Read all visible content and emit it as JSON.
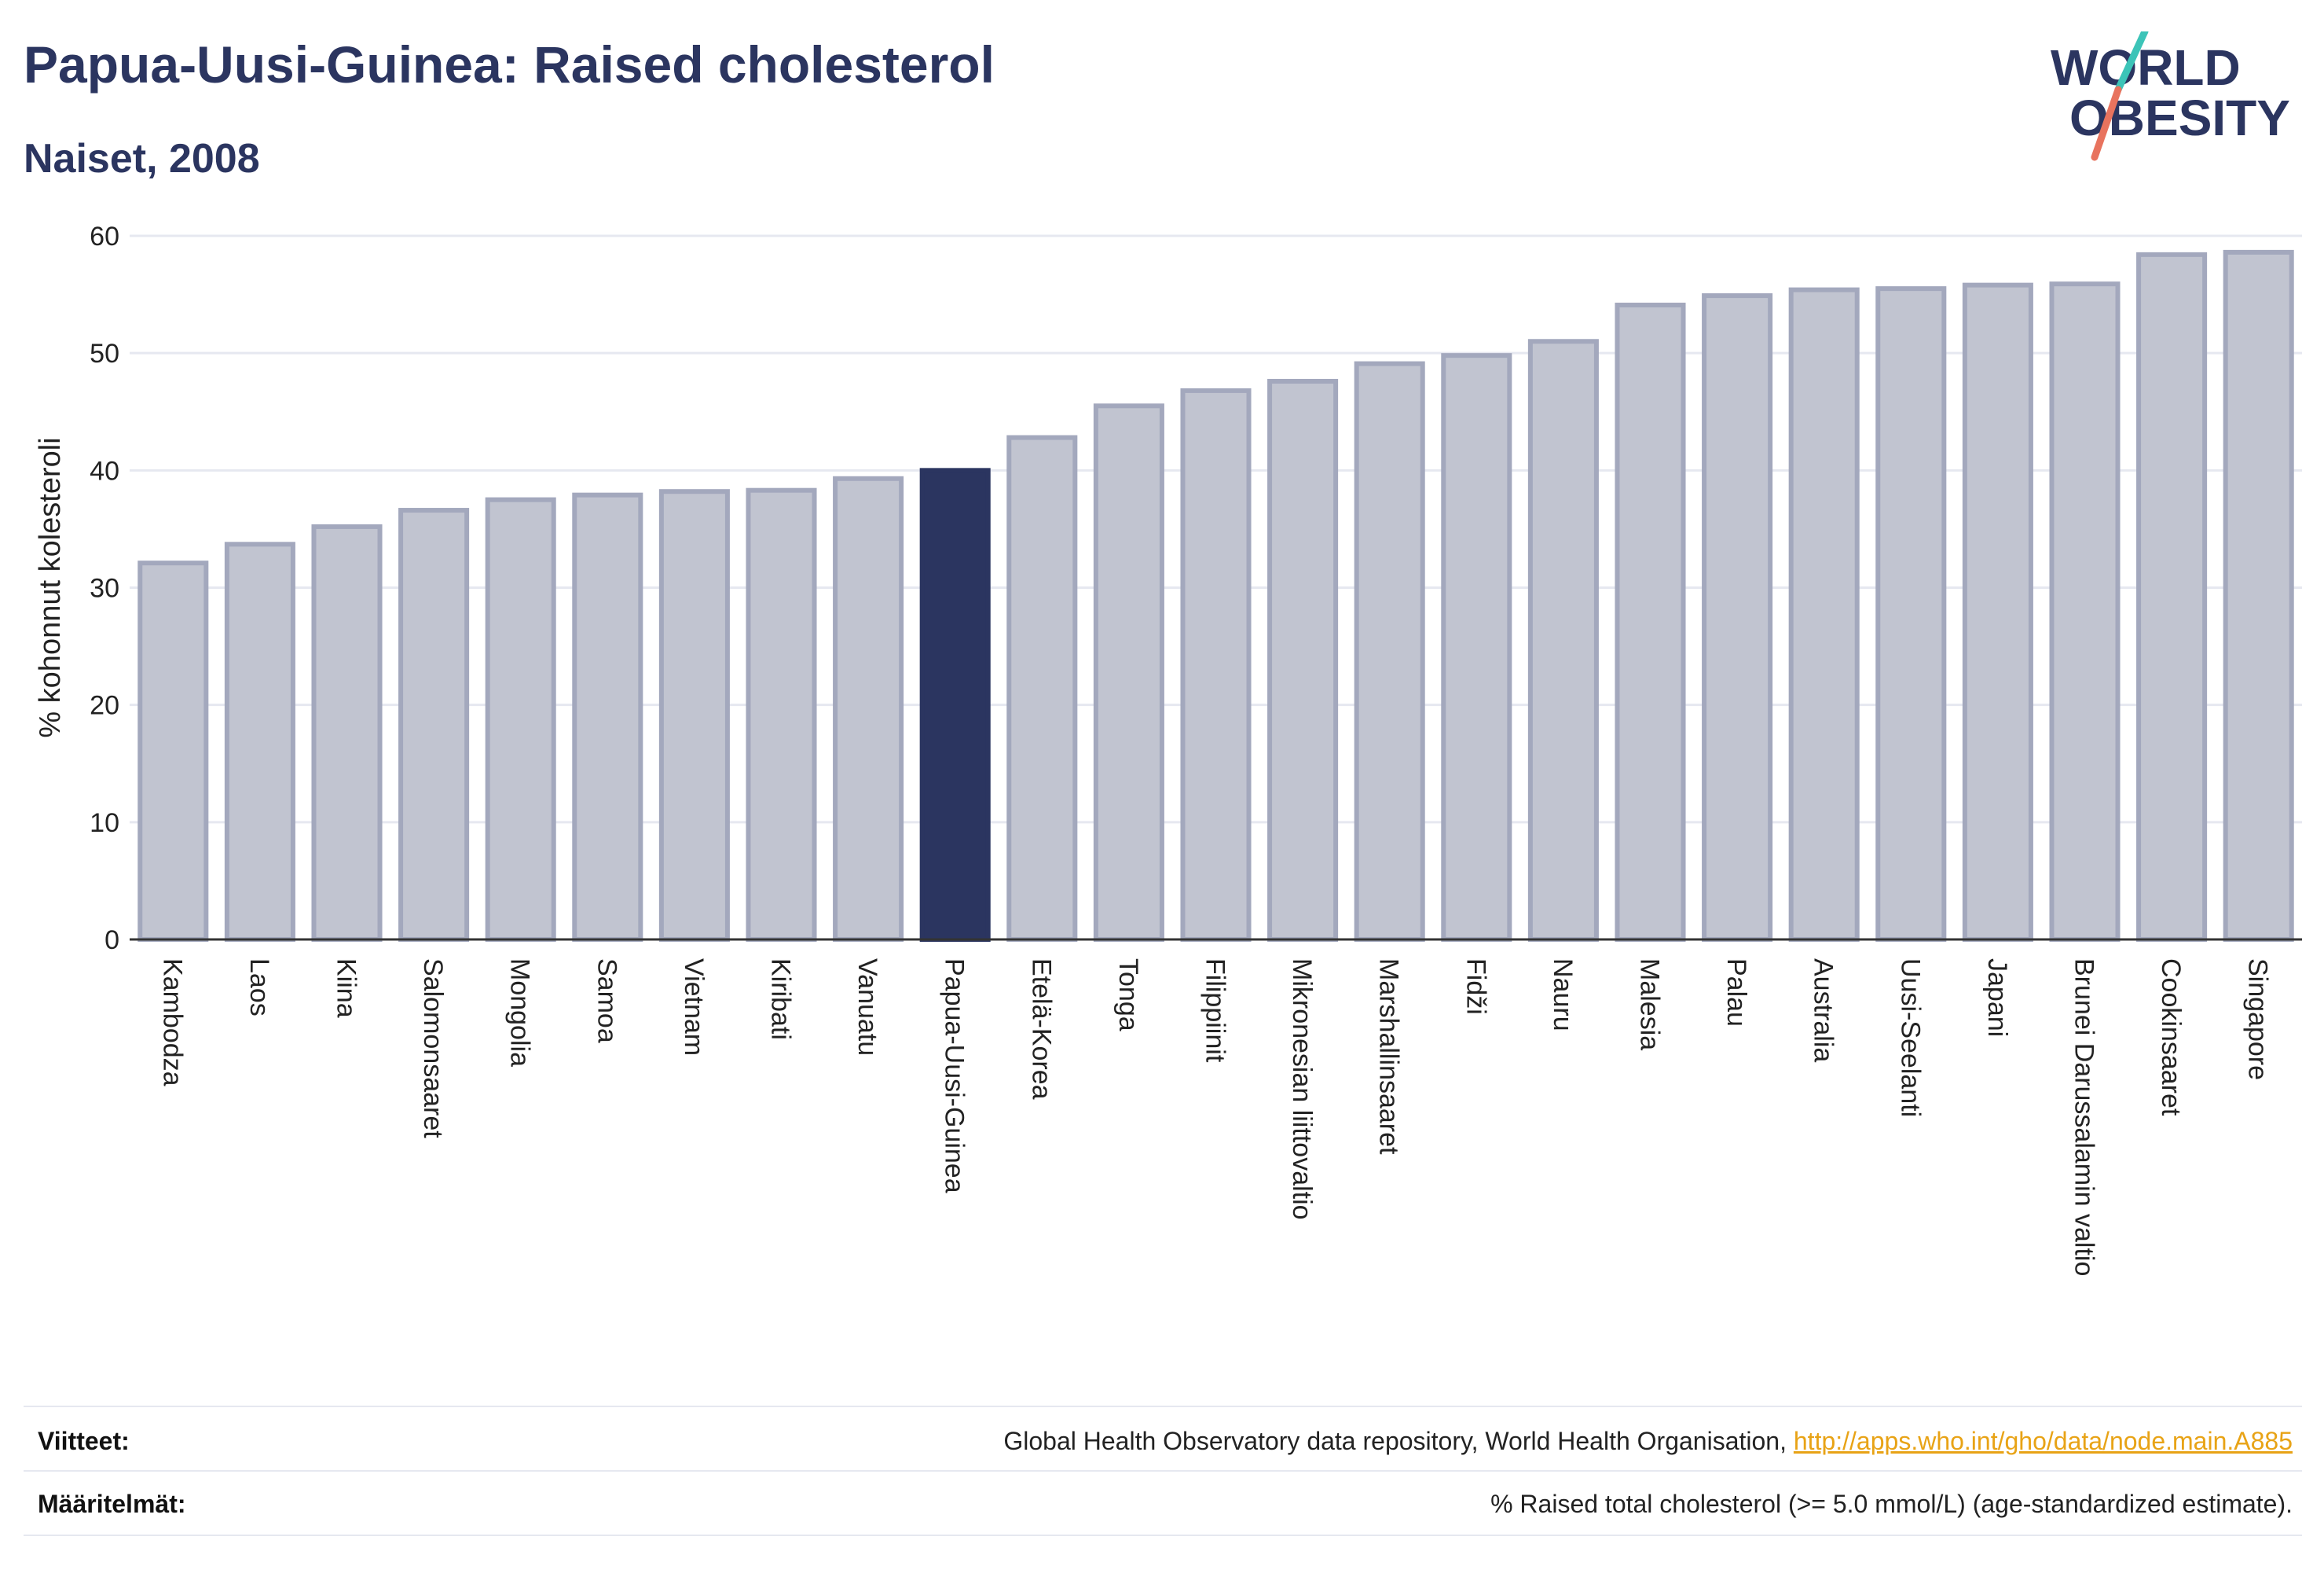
{
  "header": {
    "title": "Papua-Uusi-Guinea: Raised cholesterol",
    "subtitle": "Naiset, 2008"
  },
  "logo": {
    "line1": "WORLD",
    "line2": "OBESITY",
    "colors": {
      "text": "#2b3560",
      "slash_teal": "#3cc4b8",
      "slash_coral": "#e8735e"
    }
  },
  "colors": {
    "bar_fill": "#c1c4d0",
    "bar_stroke": "#a3a8bd",
    "highlight": "#2b3560",
    "grid": "#e6e8f0",
    "axis": "#333333"
  },
  "chart_data": {
    "type": "bar",
    "title": "Papua-Uusi-Guinea: Raised cholesterol",
    "subtitle": "Naiset, 2008",
    "xlabel": "",
    "ylabel": "% kohonnut kolesteroli",
    "ylim": [
      0,
      60
    ],
    "yticks": [
      0,
      10,
      20,
      30,
      40,
      50,
      60
    ],
    "grid": true,
    "highlight": "Papua-Uusi-Guinea",
    "categories": [
      "Kambodza",
      "Laos",
      "Kiina",
      "Salomonsaaret",
      "Mongolia",
      "Samoa",
      "Vietnam",
      "Kiribati",
      "Vanuatu",
      "Papua-Uusi-Guinea",
      "Etelä-Korea",
      "Tonga",
      "Filippiinit",
      "Mikronesian liittovaltio",
      "Marshallinsaaret",
      "Fidži",
      "Nauru",
      "Malesia",
      "Palau",
      "Australia",
      "Uusi-Seelanti",
      "Japani",
      "Brunei Darussalamin valtio",
      "Cookinsaaret",
      "Singapore"
    ],
    "values": [
      32.1,
      33.7,
      35.2,
      36.6,
      37.5,
      37.9,
      38.2,
      38.3,
      39.3,
      40.0,
      42.8,
      45.5,
      46.8,
      47.6,
      49.1,
      49.8,
      51.0,
      54.1,
      54.9,
      55.4,
      55.5,
      55.8,
      55.9,
      58.4,
      58.6
    ]
  },
  "footer": {
    "sources_label": "Viitteet:",
    "sources_text": "Global Health Observatory data repository, World Health Organisation, ",
    "sources_link": "http://apps.who.int/gho/data/node.main.A885",
    "definitions_label": "Määritelmät:",
    "definitions_text": "% Raised total cholesterol (>= 5.0 mmol/L) (age-standardized estimate)."
  }
}
